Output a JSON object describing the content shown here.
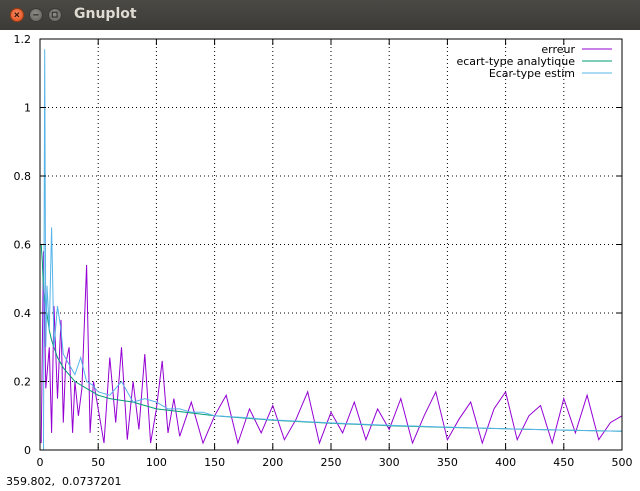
{
  "window": {
    "title": "Gnuplot",
    "accent_close": "#df4b16",
    "titlebar_color": "#3c3b37"
  },
  "status": {
    "coords": "359.802,  0.0737201"
  },
  "colors": {
    "erreur": "#9400d3",
    "ecart_type_analytique": "#009e73",
    "ecart_type_estim": "#56b4e9"
  },
  "chart_data": {
    "type": "line",
    "title": "",
    "xlabel": "",
    "ylabel": "",
    "xlim": [
      0,
      500
    ],
    "ylim": [
      0,
      1.2
    ],
    "xticks": [
      "0",
      "50",
      "100",
      "150",
      "200",
      "250",
      "300",
      "350",
      "400",
      "450",
      "500"
    ],
    "yticks": [
      "0",
      "0.2",
      "0.4",
      "0.6",
      "0.8",
      "1",
      "1.2"
    ],
    "grid": "dotted",
    "legend_position": "top-right",
    "series": [
      {
        "name": "erreur",
        "x": [
          1,
          3,
          5,
          8,
          10,
          12,
          15,
          18,
          20,
          22,
          25,
          28,
          30,
          33,
          36,
          40,
          43,
          46,
          50,
          55,
          60,
          65,
          70,
          75,
          80,
          85,
          90,
          95,
          100,
          105,
          110,
          115,
          120,
          130,
          140,
          150,
          160,
          170,
          180,
          190,
          200,
          210,
          220,
          230,
          240,
          250,
          260,
          270,
          280,
          290,
          300,
          310,
          320,
          330,
          340,
          350,
          360,
          370,
          380,
          390,
          400,
          410,
          420,
          430,
          440,
          450,
          460,
          470,
          480,
          490,
          500
        ],
        "y": [
          0.02,
          0.58,
          0.18,
          0.3,
          0.05,
          0.42,
          0.15,
          0.38,
          0.08,
          0.25,
          0.3,
          0.05,
          0.2,
          0.1,
          0.18,
          0.54,
          0.05,
          0.2,
          0.12,
          0.02,
          0.27,
          0.08,
          0.3,
          0.03,
          0.2,
          0.06,
          0.28,
          0.02,
          0.12,
          0.26,
          0.05,
          0.15,
          0.04,
          0.14,
          0.02,
          0.1,
          0.16,
          0.02,
          0.12,
          0.05,
          0.13,
          0.03,
          0.09,
          0.17,
          0.02,
          0.11,
          0.05,
          0.14,
          0.03,
          0.12,
          0.06,
          0.15,
          0.02,
          0.1,
          0.17,
          0.03,
          0.09,
          0.14,
          0.02,
          0.12,
          0.17,
          0.03,
          0.1,
          0.13,
          0.02,
          0.15,
          0.05,
          0.16,
          0.03,
          0.08,
          0.1
        ]
      },
      {
        "name": "ecart-type analytique",
        "x": [
          1,
          2,
          3,
          5,
          8,
          10,
          15,
          20,
          30,
          40,
          50,
          60,
          80,
          100,
          125,
          150,
          200,
          250,
          300,
          350,
          400,
          450,
          500
        ],
        "y": [
          0.6,
          0.55,
          0.47,
          0.42,
          0.35,
          0.32,
          0.27,
          0.24,
          0.2,
          0.18,
          0.16,
          0.15,
          0.14,
          0.12,
          0.11,
          0.1,
          0.087,
          0.078,
          0.071,
          0.066,
          0.062,
          0.058,
          0.055
        ]
      },
      {
        "name": "Ecar-type estim",
        "x": [
          3,
          4,
          5,
          6,
          8,
          10,
          12,
          15,
          18,
          20,
          25,
          30,
          35,
          40,
          45,
          50,
          60,
          70,
          80,
          90,
          100,
          110,
          120,
          130,
          140,
          150,
          175,
          200,
          250,
          300,
          350,
          400,
          450,
          500
        ],
        "y": [
          0.0,
          1.17,
          0.3,
          0.48,
          0.35,
          0.65,
          0.3,
          0.42,
          0.35,
          0.28,
          0.25,
          0.22,
          0.27,
          0.2,
          0.19,
          0.17,
          0.16,
          0.2,
          0.14,
          0.15,
          0.14,
          0.12,
          0.12,
          0.11,
          0.11,
          0.1,
          0.095,
          0.088,
          0.079,
          0.072,
          0.067,
          0.062,
          0.058,
          0.055
        ]
      }
    ]
  }
}
